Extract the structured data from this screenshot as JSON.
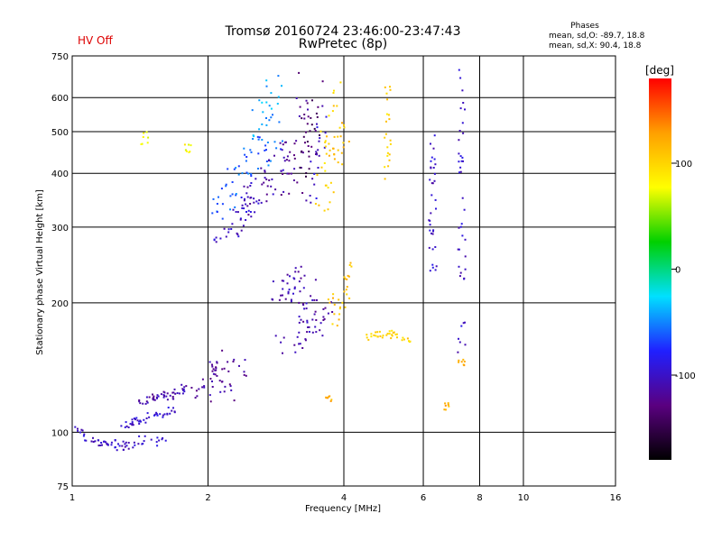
{
  "header": {
    "status": "HV Off",
    "title_line1": "Tromsø 20160724 23:46:00-23:47:43",
    "title_line2": "RwPretec (8p)",
    "phases_heading": "Phases",
    "phases_o": "mean, sd,O: -89.7, 18.8",
    "phases_x": "mean, sd,X:  90.4, 18.8"
  },
  "chart_data": {
    "type": "scatter",
    "title": "Tromsø 20160724 23:46:00-23:47:43",
    "subtitle": "RwPretec (8p)",
    "xlabel": "Frequency [MHz]",
    "ylabel": "Stationary phase Virtual Height [km]",
    "x_scale": "log",
    "y_scale": "log",
    "xlim": [
      1,
      16
    ],
    "ylim": [
      75,
      750
    ],
    "x_ticks": [
      1,
      2,
      4,
      6,
      8,
      10,
      16
    ],
    "x_tick_labels": [
      "1",
      "2",
      "4",
      "6",
      "8",
      "10",
      "16"
    ],
    "y_ticks": [
      75,
      100,
      200,
      300,
      400,
      500,
      600,
      750
    ],
    "y_tick_labels": [
      "75",
      "100",
      "200",
      "300",
      "400",
      "500",
      "600",
      "750"
    ],
    "grid": true,
    "colorbar": {
      "label": "[deg]",
      "range": [
        -180,
        180
      ],
      "ticks": [
        -100,
        0,
        100
      ],
      "tick_labels": [
        "-100",
        "0",
        "100"
      ],
      "colors": [
        "#000000",
        "#5a0080",
        "#2020ff",
        "#00e0ff",
        "#00d000",
        "#ffff00",
        "#ffa000",
        "#ff0000"
      ]
    },
    "series": [
      {
        "x": [
          1.05,
          1.1,
          1.15,
          1.2,
          1.25,
          1.3,
          1.35,
          1.45,
          1.55
        ],
        "y": [
          101,
          96,
          95,
          94,
          94,
          93,
          94,
          96,
          95
        ],
        "phase": -100,
        "spread": [
          0.02,
          0.012
        ]
      },
      {
        "x": [
          1.32,
          1.38,
          1.42,
          1.5,
          1.58,
          1.65
        ],
        "y": [
          104,
          106,
          107,
          109,
          110,
          112
        ],
        "phase": -95,
        "spread": [
          0.015,
          0.01
        ]
      },
      {
        "x": [
          1.45,
          1.5,
          1.55,
          1.6,
          1.65,
          1.72,
          1.8
        ],
        "y": [
          118,
          120,
          121,
          122,
          122,
          124,
          126
        ],
        "phase": -110,
        "spread": [
          0.015,
          0.012
        ]
      },
      {
        "x": [
          1.95,
          2.0,
          2.05,
          2.1,
          2.15,
          2.2,
          2.35
        ],
        "y": [
          125,
          130,
          140,
          146,
          138,
          122,
          142
        ],
        "phase": -115,
        "spread": [
          0.02,
          0.03
        ]
      },
      {
        "x": [
          2.15,
          2.25,
          2.35,
          2.45,
          2.5
        ],
        "y": [
          290,
          300,
          320,
          340,
          360
        ],
        "phase": -100,
        "spread": [
          0.02,
          0.03
        ]
      },
      {
        "x": [
          2.1,
          2.2,
          2.3,
          2.4,
          2.5,
          2.6,
          2.7,
          2.8
        ],
        "y": [
          340,
          360,
          380,
          400,
          420,
          440,
          470,
          500
        ],
        "phase": -60,
        "spread": [
          0.025,
          0.05
        ]
      },
      {
        "x": [
          2.4,
          2.5,
          2.6,
          2.7,
          2.8,
          2.9
        ],
        "y": [
          320,
          340,
          360,
          380,
          400,
          430
        ],
        "phase": -110,
        "spread": [
          0.02,
          0.05
        ]
      },
      {
        "x": [
          2.6,
          2.7,
          2.8
        ],
        "y": [
          520,
          560,
          620
        ],
        "phase": -40,
        "spread": [
          0.02,
          0.05
        ]
      },
      {
        "x": [
          3.0,
          3.05,
          3.1,
          3.2,
          3.25
        ],
        "y": [
          380,
          420,
          460,
          520,
          600
        ],
        "phase": -120,
        "spread": [
          0.02,
          0.08
        ]
      },
      {
        "x": [
          3.3,
          3.35,
          3.4,
          3.5
        ],
        "y": [
          420,
          460,
          500,
          560
        ],
        "phase": -140,
        "spread": [
          0.02,
          0.08
        ]
      },
      {
        "x": [
          3.4,
          3.5,
          3.6
        ],
        "y": [
          380,
          440,
          500
        ],
        "phase": -100,
        "spread": [
          0.02,
          0.07
        ]
      },
      {
        "x": [
          3.6,
          3.65,
          3.7,
          3.8
        ],
        "y": [
          380,
          420,
          480,
          560
        ],
        "phase": 100,
        "spread": [
          0.02,
          0.08
        ]
      },
      {
        "x": [
          3.8,
          3.9,
          4.0
        ],
        "y": [
          420,
          460,
          500
        ],
        "phase": 110,
        "spread": [
          0.015,
          0.05
        ]
      },
      {
        "x": [
          5.0,
          5.0,
          5.0
        ],
        "y": [
          430,
          500,
          580
        ],
        "phase": 100,
        "spread": [
          0.008,
          0.06
        ]
      },
      {
        "x": [
          6.3,
          6.3,
          6.3,
          7.3,
          7.3,
          7.3
        ],
        "y": [
          330,
          410,
          470,
          380,
          470,
          600
        ],
        "phase": -100,
        "spread": [
          0.008,
          0.08
        ]
      },
      {
        "x": [
          2.9,
          3.0,
          3.1,
          3.2,
          3.3,
          3.4
        ],
        "y": [
          215,
          220,
          225,
          210,
          230,
          205
        ],
        "phase": -110,
        "spread": [
          0.03,
          0.03
        ]
      },
      {
        "x": [
          3.0,
          3.2,
          3.3,
          3.4,
          3.5,
          3.6
        ],
        "y": [
          165,
          170,
          172,
          175,
          180,
          190
        ],
        "phase": -110,
        "spread": [
          0.03,
          0.04
        ]
      },
      {
        "x": [
          3.8,
          3.9,
          4.0,
          4.1
        ],
        "y": [
          190,
          200,
          210,
          230
        ],
        "phase": 110,
        "spread": [
          0.015,
          0.04
        ]
      },
      {
        "x": [
          4.6,
          4.8,
          5.0,
          5.2,
          5.5
        ],
        "y": [
          166,
          168,
          170,
          168,
          165
        ],
        "phase": 100,
        "spread": [
          0.012,
          0.01
        ]
      },
      {
        "x": [
          6.3,
          6.3,
          7.3,
          7.3,
          7.3
        ],
        "y": [
          240,
          280,
          170,
          230,
          280
        ],
        "phase": -100,
        "spread": [
          0.01,
          0.06
        ]
      },
      {
        "x": [
          1.45,
          1.8
        ],
        "y": [
          480,
          450
        ],
        "phase": 80,
        "spread": [
          0.01,
          0.02
        ]
      },
      {
        "x": [
          3.7,
          6.8,
          7.3
        ],
        "y": [
          120,
          115,
          145
        ],
        "phase": 120,
        "spread": [
          0.01,
          0.01
        ]
      }
    ]
  }
}
